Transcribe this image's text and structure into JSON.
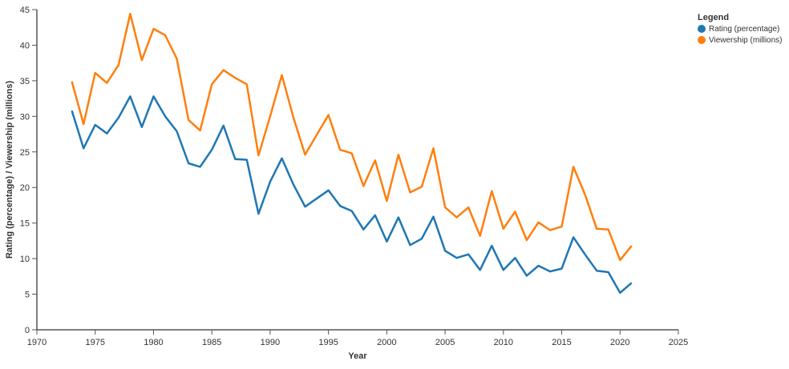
{
  "chart_data": {
    "type": "line",
    "title": "",
    "xlabel": "Year",
    "ylabel": "Rating (percentage) / Viewership (millions)",
    "xlim": [
      1970,
      2025
    ],
    "ylim": [
      0,
      45
    ],
    "xticks": [
      1970,
      1975,
      1980,
      1985,
      1990,
      1995,
      2000,
      2005,
      2010,
      2015,
      2020,
      2025
    ],
    "yticks": [
      0,
      5,
      10,
      15,
      20,
      25,
      30,
      35,
      40,
      45
    ],
    "grid": false,
    "legend": {
      "title": "Legend",
      "position": "top-right"
    },
    "x": [
      1973,
      1974,
      1975,
      1976,
      1977,
      1978,
      1979,
      1980,
      1981,
      1982,
      1983,
      1984,
      1985,
      1986,
      1987,
      1988,
      1989,
      1990,
      1991,
      1992,
      1993,
      1995,
      1996,
      1997,
      1998,
      1999,
      2000,
      2001,
      2002,
      2003,
      2004,
      2005,
      2006,
      2007,
      2008,
      2009,
      2010,
      2011,
      2012,
      2013,
      2014,
      2015,
      2016,
      2017,
      2018,
      2019,
      2020,
      2021
    ],
    "series": [
      {
        "name": "Rating (percentage)",
        "color": "#1f77b4",
        "values": [
          30.8,
          25.5,
          28.8,
          27.6,
          29.8,
          32.8,
          28.5,
          32.8,
          30.0,
          27.9,
          23.4,
          22.9,
          25.3,
          28.7,
          24.0,
          23.9,
          16.3,
          20.8,
          24.1,
          20.4,
          17.3,
          19.6,
          17.4,
          16.7,
          14.1,
          16.1,
          12.4,
          15.8,
          11.9,
          12.8,
          15.9,
          11.1,
          10.1,
          10.6,
          8.4,
          11.8,
          8.4,
          10.1,
          7.6,
          9.0,
          8.2,
          8.6,
          13.0,
          10.6,
          8.3,
          8.1,
          5.2,
          6.6
        ]
      },
      {
        "name": "Viewership (millions)",
        "color": "#ff7f0e",
        "values": [
          34.9,
          28.9,
          36.1,
          34.7,
          37.2,
          44.4,
          37.9,
          42.3,
          41.4,
          38.1,
          29.5,
          28.0,
          34.5,
          36.5,
          35.4,
          34.5,
          24.5,
          30.0,
          35.8,
          29.8,
          24.6,
          30.2,
          25.3,
          24.8,
          20.2,
          23.8,
          18.1,
          24.6,
          19.3,
          20.1,
          25.5,
          17.2,
          15.8,
          17.2,
          13.2,
          19.5,
          14.2,
          16.6,
          12.6,
          15.1,
          14.0,
          14.5,
          22.9,
          19.0,
          14.2,
          14.1,
          9.8,
          11.8
        ]
      }
    ]
  }
}
